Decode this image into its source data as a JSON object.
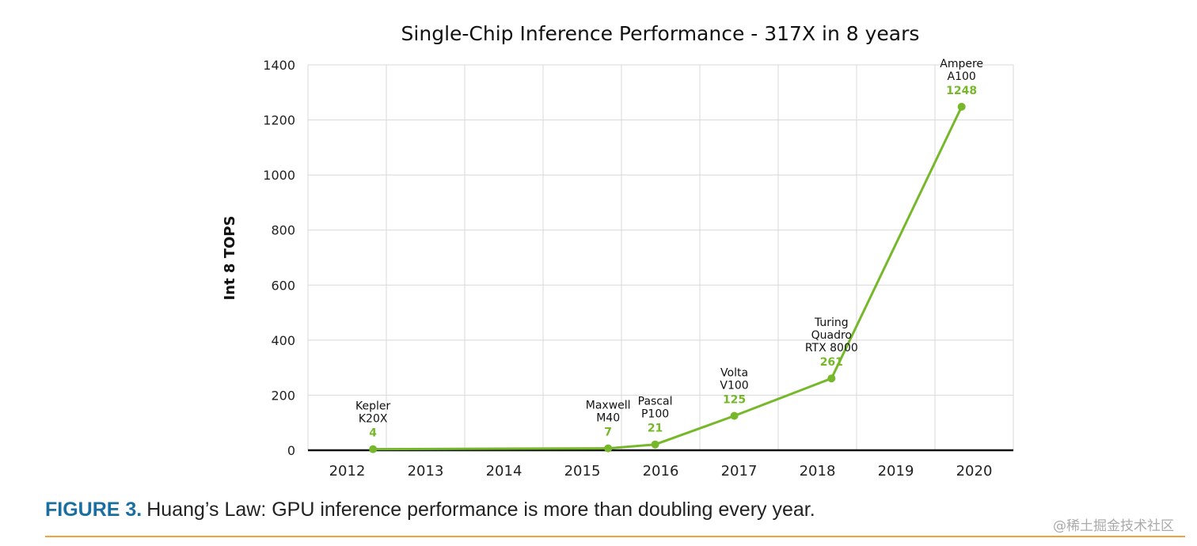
{
  "chart_data": {
    "type": "line",
    "title": "Single-Chip Inference Performance - 317X in 8 years",
    "xlabel": "",
    "ylabel": "Int 8 TOPS",
    "x_tick_labels": [
      "2012",
      "2013",
      "2014",
      "2015",
      "2016",
      "2017",
      "2018",
      "2019",
      "2020"
    ],
    "xlim": [
      2012,
      2021
    ],
    "ylim": [
      0,
      1400
    ],
    "y_ticks": [
      0,
      200,
      400,
      600,
      800,
      1000,
      1200,
      1400
    ],
    "grid": true,
    "line_color": "#76b82a",
    "points": [
      {
        "x": 2012.83,
        "y": 4,
        "label": [
          "Kepler",
          "K20X"
        ],
        "value_label": "4"
      },
      {
        "x": 2015.83,
        "y": 7,
        "label": [
          "Maxwell",
          "M40"
        ],
        "value_label": "7"
      },
      {
        "x": 2016.43,
        "y": 21,
        "label": [
          "Pascal",
          "P100"
        ],
        "value_label": "21"
      },
      {
        "x": 2017.44,
        "y": 125,
        "label": [
          "Volta",
          "V100"
        ],
        "value_label": "125"
      },
      {
        "x": 2018.68,
        "y": 261,
        "label": [
          "Turing",
          "Quadro",
          "RTX 8000"
        ],
        "value_label": "261"
      },
      {
        "x": 2020.34,
        "y": 1248,
        "label": [
          "Ampere",
          "A100"
        ],
        "value_label": "1248"
      }
    ]
  },
  "caption": {
    "figure": "FIGURE 3.",
    "text": "Huang’s Law: GPU inference performance is more than doubling every year."
  },
  "watermark": "@稀土掘金技术社区",
  "colors": {
    "caption_figure": "#1b6fa0",
    "rule": "#f2a040"
  }
}
